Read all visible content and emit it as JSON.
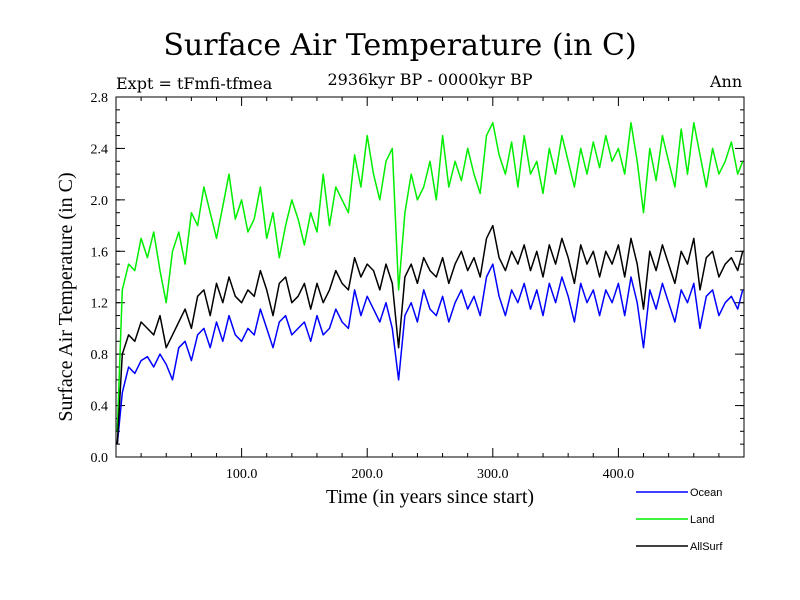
{
  "chart_data": {
    "type": "line",
    "title": "Surface Air Temperature (in C)",
    "experiment_label": "Expt = tFmfi-tfmea",
    "period_label": "2936kyr BP - 0000kyr BP",
    "season_label": "Ann",
    "xlabel": "Time (in years since start)",
    "ylabel": "Surface Air Temperature (in C)",
    "xlim": [
      0,
      500
    ],
    "ylim": [
      0.0,
      2.8
    ],
    "x_ticks": [
      100,
      200,
      300,
      400
    ],
    "x_tick_labels": [
      "100.0",
      "200.0",
      "300.0",
      "400.0"
    ],
    "y_ticks": [
      0.0,
      0.4,
      0.8,
      1.2,
      1.6,
      2.0,
      2.4,
      2.8
    ],
    "y_tick_labels": [
      "0.0",
      "0.4",
      "0.8",
      "1.2",
      "1.6",
      "2.0",
      "2.4",
      "2.8"
    ],
    "legend_position": "bottom-right, outside plot",
    "series": [
      {
        "name": "Ocean",
        "color": "#0000ff",
        "x": [
          1,
          5,
          10,
          15,
          20,
          25,
          30,
          35,
          40,
          45,
          50,
          55,
          60,
          65,
          70,
          75,
          80,
          85,
          90,
          95,
          100,
          105,
          110,
          115,
          120,
          125,
          130,
          135,
          140,
          145,
          150,
          155,
          160,
          165,
          170,
          175,
          180,
          185,
          190,
          195,
          200,
          205,
          210,
          215,
          220,
          225,
          230,
          235,
          240,
          245,
          250,
          255,
          260,
          265,
          270,
          275,
          280,
          285,
          290,
          295,
          300,
          305,
          310,
          315,
          320,
          325,
          330,
          335,
          340,
          345,
          350,
          355,
          360,
          365,
          370,
          375,
          380,
          385,
          390,
          395,
          400,
          405,
          410,
          415,
          420,
          425,
          430,
          435,
          440,
          445,
          450,
          455,
          460,
          465,
          470,
          475,
          480,
          485,
          490,
          495,
          499
        ],
        "values": [
          0.1,
          0.5,
          0.7,
          0.65,
          0.75,
          0.78,
          0.7,
          0.8,
          0.72,
          0.6,
          0.85,
          0.9,
          0.75,
          0.95,
          1.0,
          0.85,
          1.05,
          0.9,
          1.1,
          0.95,
          0.9,
          1.0,
          0.95,
          1.15,
          1.0,
          0.85,
          1.05,
          1.1,
          0.95,
          1.0,
          1.05,
          0.9,
          1.1,
          0.95,
          1.0,
          1.15,
          1.05,
          1.0,
          1.3,
          1.1,
          1.25,
          1.15,
          1.05,
          1.2,
          1.0,
          0.6,
          1.1,
          1.2,
          1.05,
          1.3,
          1.15,
          1.1,
          1.25,
          1.05,
          1.2,
          1.3,
          1.15,
          1.25,
          1.1,
          1.4,
          1.5,
          1.25,
          1.1,
          1.3,
          1.2,
          1.35,
          1.15,
          1.3,
          1.1,
          1.35,
          1.2,
          1.4,
          1.25,
          1.05,
          1.35,
          1.2,
          1.3,
          1.1,
          1.3,
          1.2,
          1.35,
          1.1,
          1.4,
          1.2,
          0.85,
          1.3,
          1.15,
          1.35,
          1.2,
          1.05,
          1.3,
          1.2,
          1.35,
          1.0,
          1.25,
          1.3,
          1.1,
          1.2,
          1.25,
          1.15,
          1.3
        ]
      },
      {
        "name": "Land",
        "color": "#00ee00",
        "x": [
          1,
          5,
          10,
          15,
          20,
          25,
          30,
          35,
          40,
          45,
          50,
          55,
          60,
          65,
          70,
          75,
          80,
          85,
          90,
          95,
          100,
          105,
          110,
          115,
          120,
          125,
          130,
          135,
          140,
          145,
          150,
          155,
          160,
          165,
          170,
          175,
          180,
          185,
          190,
          195,
          200,
          205,
          210,
          215,
          220,
          225,
          230,
          235,
          240,
          245,
          250,
          255,
          260,
          265,
          270,
          275,
          280,
          285,
          290,
          295,
          300,
          305,
          310,
          315,
          320,
          325,
          330,
          335,
          340,
          345,
          350,
          355,
          360,
          365,
          370,
          375,
          380,
          385,
          390,
          395,
          400,
          405,
          410,
          415,
          420,
          425,
          430,
          435,
          440,
          445,
          450,
          455,
          460,
          465,
          470,
          475,
          480,
          485,
          490,
          495,
          499
        ],
        "values": [
          0.2,
          1.3,
          1.5,
          1.45,
          1.7,
          1.55,
          1.75,
          1.45,
          1.2,
          1.6,
          1.75,
          1.5,
          1.9,
          1.8,
          2.1,
          1.9,
          1.7,
          1.95,
          2.2,
          1.85,
          2.0,
          1.75,
          1.85,
          2.1,
          1.7,
          1.9,
          1.55,
          1.8,
          2.0,
          1.85,
          1.65,
          1.9,
          1.75,
          2.2,
          1.8,
          2.1,
          2.0,
          1.9,
          2.35,
          2.1,
          2.5,
          2.2,
          2.0,
          2.3,
          2.4,
          1.3,
          1.9,
          2.2,
          2.0,
          2.1,
          2.3,
          2.0,
          2.5,
          2.1,
          2.3,
          2.15,
          2.4,
          2.2,
          2.05,
          2.5,
          2.6,
          2.35,
          2.2,
          2.45,
          2.1,
          2.5,
          2.2,
          2.3,
          2.05,
          2.4,
          2.2,
          2.5,
          2.3,
          2.1,
          2.4,
          2.2,
          2.45,
          2.25,
          2.5,
          2.3,
          2.4,
          2.2,
          2.6,
          2.3,
          1.9,
          2.4,
          2.15,
          2.5,
          2.3,
          2.1,
          2.55,
          2.2,
          2.6,
          2.35,
          2.1,
          2.4,
          2.2,
          2.3,
          2.45,
          2.2,
          2.3
        ]
      },
      {
        "name": "AllSurf",
        "color": "#000000",
        "x": [
          1,
          5,
          10,
          15,
          20,
          25,
          30,
          35,
          40,
          45,
          50,
          55,
          60,
          65,
          70,
          75,
          80,
          85,
          90,
          95,
          100,
          105,
          110,
          115,
          120,
          125,
          130,
          135,
          140,
          145,
          150,
          155,
          160,
          165,
          170,
          175,
          180,
          185,
          190,
          195,
          200,
          205,
          210,
          215,
          220,
          225,
          230,
          235,
          240,
          245,
          250,
          255,
          260,
          265,
          270,
          275,
          280,
          285,
          290,
          295,
          300,
          305,
          310,
          315,
          320,
          325,
          330,
          335,
          340,
          345,
          350,
          355,
          360,
          365,
          370,
          375,
          380,
          385,
          390,
          395,
          400,
          405,
          410,
          415,
          420,
          425,
          430,
          435,
          440,
          445,
          450,
          455,
          460,
          465,
          470,
          475,
          480,
          485,
          490,
          495,
          499
        ],
        "values": [
          0.1,
          0.8,
          0.95,
          0.9,
          1.05,
          1.0,
          0.95,
          1.1,
          0.85,
          0.95,
          1.05,
          1.15,
          1.0,
          1.25,
          1.3,
          1.1,
          1.35,
          1.2,
          1.4,
          1.25,
          1.2,
          1.3,
          1.25,
          1.45,
          1.3,
          1.1,
          1.35,
          1.4,
          1.2,
          1.25,
          1.35,
          1.15,
          1.35,
          1.2,
          1.3,
          1.45,
          1.35,
          1.3,
          1.55,
          1.4,
          1.5,
          1.45,
          1.3,
          1.5,
          1.35,
          0.85,
          1.4,
          1.5,
          1.35,
          1.55,
          1.45,
          1.4,
          1.55,
          1.35,
          1.5,
          1.6,
          1.45,
          1.55,
          1.4,
          1.7,
          1.8,
          1.55,
          1.45,
          1.6,
          1.5,
          1.65,
          1.45,
          1.6,
          1.4,
          1.65,
          1.5,
          1.7,
          1.55,
          1.35,
          1.65,
          1.5,
          1.6,
          1.4,
          1.6,
          1.5,
          1.65,
          1.4,
          1.7,
          1.5,
          1.15,
          1.6,
          1.45,
          1.65,
          1.5,
          1.35,
          1.6,
          1.5,
          1.7,
          1.3,
          1.55,
          1.6,
          1.4,
          1.5,
          1.55,
          1.45,
          1.6
        ]
      }
    ]
  }
}
